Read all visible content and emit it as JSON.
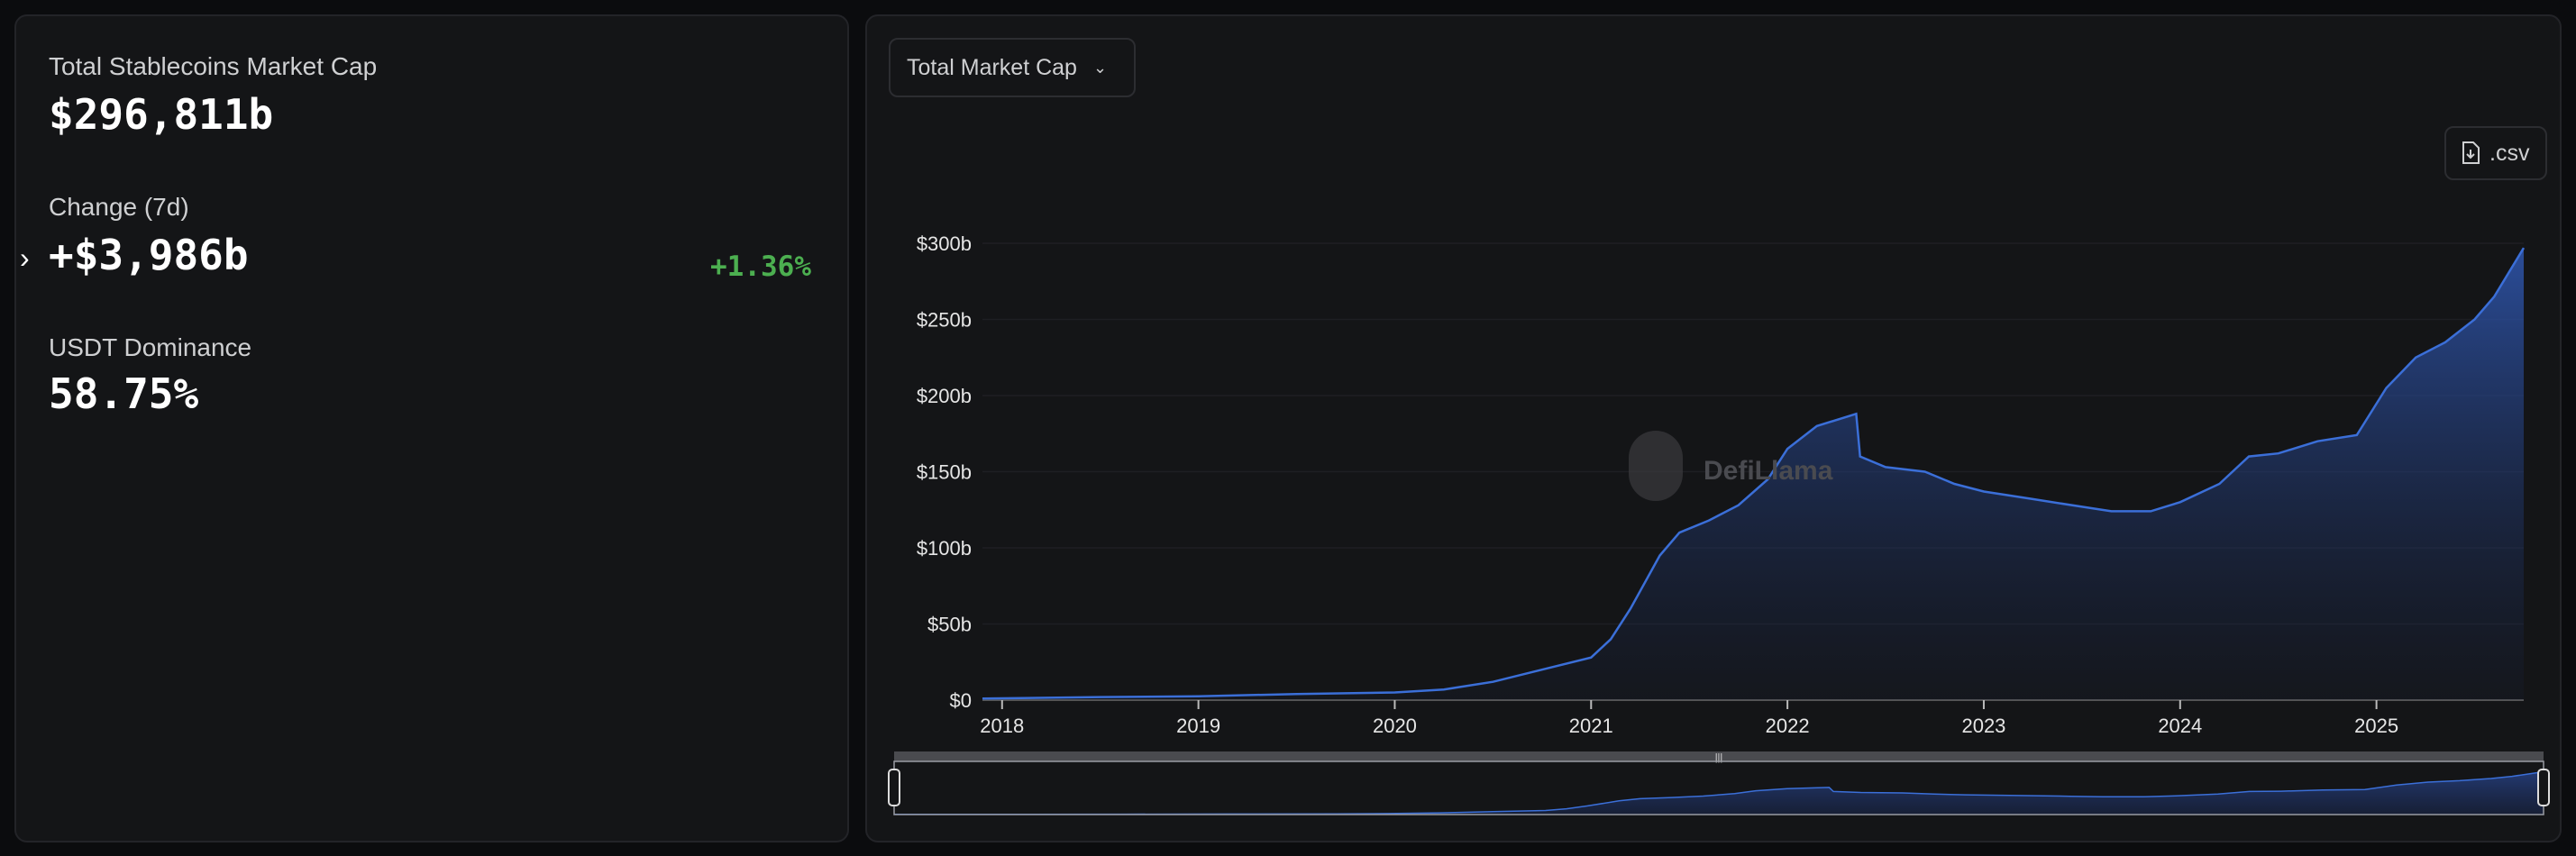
{
  "summary": {
    "total_label": "Total Stablecoins Market Cap",
    "total_value": "$296,811b",
    "change_label": "Change (7d)",
    "change_value": "+$3,986b",
    "change_pct": "+1.36%",
    "dominance_label": "USDT Dominance",
    "dominance_value": "58.75%"
  },
  "toolbar": {
    "dropdown_label": "Total Market Cap",
    "csv_label": ".csv"
  },
  "watermark": "DefiLlama",
  "colors": {
    "line": "#3b6fd8",
    "positive": "#4caf50"
  },
  "chart_data": {
    "type": "area",
    "title": "Total Market Cap",
    "xlabel": "",
    "ylabel": "",
    "ylim": [
      0,
      300
    ],
    "yticks": [
      "$0",
      "$50b",
      "$100b",
      "$150b",
      "$200b",
      "$250b",
      "$300b"
    ],
    "ytick_values": [
      0,
      50,
      100,
      150,
      200,
      250,
      300
    ],
    "xticks": [
      "2018",
      "2019",
      "2020",
      "2021",
      "2022",
      "2023",
      "2024",
      "2025"
    ],
    "xtick_values": [
      2018,
      2019,
      2020,
      2021,
      2022,
      2023,
      2024,
      2025
    ],
    "xlim": [
      2017.9,
      2025.75
    ],
    "grid": true,
    "series": [
      {
        "name": "Total Market Cap",
        "x": [
          2017.9,
          2018.5,
          2019,
          2019.5,
          2020,
          2020.25,
          2020.5,
          2020.75,
          2021,
          2021.1,
          2021.2,
          2021.35,
          2021.45,
          2021.6,
          2021.75,
          2021.9,
          2022,
          2022.15,
          2022.35,
          2022.37,
          2022.5,
          2022.7,
          2022.85,
          2023,
          2023.25,
          2023.5,
          2023.65,
          2023.85,
          2024,
          2024.2,
          2024.35,
          2024.5,
          2024.7,
          2024.9,
          2025.05,
          2025.2,
          2025.35,
          2025.5,
          2025.6,
          2025.75
        ],
        "values": [
          1,
          2,
          2.5,
          4,
          5,
          7,
          12,
          20,
          28,
          40,
          60,
          95,
          110,
          118,
          128,
          145,
          165,
          180,
          188,
          160,
          153,
          150,
          142,
          137,
          132,
          127,
          124,
          124,
          130,
          142,
          160,
          162,
          170,
          174,
          205,
          225,
          235,
          250,
          265,
          297
        ]
      }
    ]
  }
}
